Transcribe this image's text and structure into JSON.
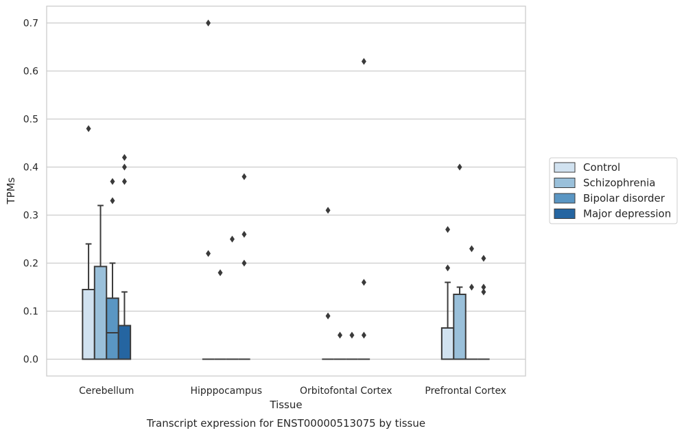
{
  "chart_data": {
    "type": "box",
    "title": "",
    "xlabel": "Tissue",
    "ylabel": "TPMs",
    "caption": "Transcript expression for ENST00000513075 by tissue",
    "ylim": [
      -0.035,
      0.735
    ],
    "yticks": [
      "0.0",
      "0.1",
      "0.2",
      "0.3",
      "0.4",
      "0.5",
      "0.6",
      "0.7"
    ],
    "grid": "horizontal",
    "legend_position": "right",
    "categories": [
      "Cerebellum",
      "Hipppocampus",
      "Orbitofontal Cortex",
      "Prefrontal Cortex"
    ],
    "series": [
      {
        "name": "Control",
        "color": "#d1e2f0",
        "boxes": [
          {
            "q1": 0.0,
            "median": 0.0,
            "q3": 0.145,
            "whislo": 0.0,
            "whishi": 0.24,
            "fliers": [
              0.48
            ]
          },
          {
            "q1": 0.0,
            "median": 0.0,
            "q3": 0.0,
            "whislo": 0.0,
            "whishi": 0.0,
            "fliers": [
              0.22,
              0.7
            ]
          },
          {
            "q1": 0.0,
            "median": 0.0,
            "q3": 0.0,
            "whislo": 0.0,
            "whishi": 0.0,
            "fliers": [
              0.31,
              0.09
            ]
          },
          {
            "q1": 0.0,
            "median": 0.0,
            "q3": 0.065,
            "whislo": 0.0,
            "whishi": 0.16,
            "fliers": [
              0.19,
              0.27
            ]
          }
        ]
      },
      {
        "name": "Schizophrenia",
        "color": "#9ac0da",
        "boxes": [
          {
            "q1": 0.0,
            "median": 0.0,
            "q3": 0.193,
            "whislo": 0.0,
            "whishi": 0.32,
            "fliers": []
          },
          {
            "q1": 0.0,
            "median": 0.0,
            "q3": 0.0,
            "whislo": 0.0,
            "whishi": 0.0,
            "fliers": [
              0.18
            ]
          },
          {
            "q1": 0.0,
            "median": 0.0,
            "q3": 0.0,
            "whislo": 0.0,
            "whishi": 0.0,
            "fliers": [
              0.05
            ]
          },
          {
            "q1": 0.0,
            "median": 0.0,
            "q3": 0.135,
            "whislo": 0.0,
            "whishi": 0.15,
            "fliers": [
              0.4
            ]
          }
        ]
      },
      {
        "name": "Bipolar disorder",
        "color": "#5a96c3",
        "boxes": [
          {
            "q1": 0.0,
            "median": 0.055,
            "q3": 0.127,
            "whislo": 0.0,
            "whishi": 0.2,
            "fliers": [
              0.33,
              0.37
            ]
          },
          {
            "q1": 0.0,
            "median": 0.0,
            "q3": 0.0,
            "whislo": 0.0,
            "whishi": 0.0,
            "fliers": [
              0.25
            ]
          },
          {
            "q1": 0.0,
            "median": 0.0,
            "q3": 0.0,
            "whislo": 0.0,
            "whishi": 0.0,
            "fliers": [
              0.05
            ]
          },
          {
            "q1": 0.0,
            "median": 0.0,
            "q3": 0.0,
            "whislo": 0.0,
            "whishi": 0.0,
            "fliers": [
              0.15,
              0.23
            ]
          }
        ]
      },
      {
        "name": "Major depression",
        "color": "#2565a1",
        "boxes": [
          {
            "q1": 0.0,
            "median": 0.0,
            "q3": 0.07,
            "whislo": 0.0,
            "whishi": 0.14,
            "fliers": [
              0.37,
              0.4,
              0.42
            ]
          },
          {
            "q1": 0.0,
            "median": 0.0,
            "q3": 0.0,
            "whislo": 0.0,
            "whishi": 0.0,
            "fliers": [
              0.2,
              0.26,
              0.38
            ]
          },
          {
            "q1": 0.0,
            "median": 0.0,
            "q3": 0.0,
            "whislo": 0.0,
            "whishi": 0.0,
            "fliers": [
              0.05,
              0.16,
              0.62
            ]
          },
          {
            "q1": 0.0,
            "median": 0.0,
            "q3": 0.0,
            "whislo": 0.0,
            "whishi": 0.0,
            "fliers": [
              0.14,
              0.15,
              0.21
            ]
          }
        ]
      }
    ]
  }
}
